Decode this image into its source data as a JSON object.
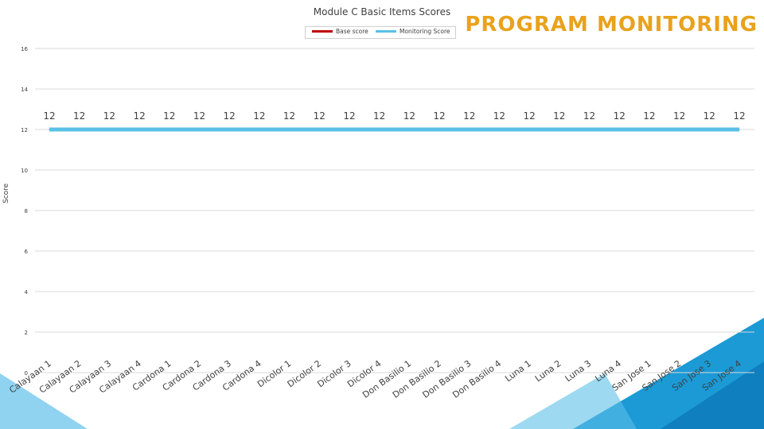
{
  "slide": {
    "title": "PROGRAM MONITORING",
    "title_color": "#e8a21c",
    "accent_colors": [
      "#2fa8de",
      "#0f7fbf",
      "#1b9ad6"
    ]
  },
  "legend": [
    {
      "name": "Base score",
      "color": "#c00000"
    },
    {
      "name": "Monitoring Score",
      "color": "#5bc0e6"
    }
  ],
  "chart_data": {
    "type": "line",
    "title": "Module C Basic Items Scores",
    "xlabel": "",
    "ylabel": "Score",
    "ylim": [
      0,
      16
    ],
    "yticks": [
      0,
      2,
      4,
      6,
      8,
      10,
      12,
      14,
      16
    ],
    "grid": true,
    "legend_position": "top",
    "categories": [
      "Calayaan 1",
      "Calayaan 2",
      "Calayaan 3",
      "Calayaan 4",
      "Cardona 1",
      "Cardona 2",
      "Cardona 3",
      "Cardona 4",
      "Dicolor 1",
      "Dicolor 2",
      "Dicolor 3",
      "Dicolor 4",
      "Don Basilio 1",
      "Don Basilio 2",
      "Don Basilio 3",
      "Don Basilio 4",
      "Luna 1",
      "Luna 2",
      "Luna 3",
      "Luna 4",
      "San Jose 1",
      "San Jose 2",
      "San Jose 3",
      "San Jose 4"
    ],
    "series": [
      {
        "name": "Base score",
        "values": [
          12,
          12,
          12,
          12,
          12,
          12,
          12,
          12,
          12,
          12,
          12,
          12,
          12,
          12,
          12,
          12,
          12,
          12,
          12,
          12,
          12,
          12,
          12,
          12
        ]
      },
      {
        "name": "Monitoring Score",
        "values": [
          12,
          12,
          12,
          12,
          12,
          12,
          12,
          12,
          12,
          12,
          12,
          12,
          12,
          12,
          12,
          12,
          12,
          12,
          12,
          12,
          12,
          12,
          12,
          12
        ]
      }
    ],
    "data_labels": [
      12,
      12,
      12,
      12,
      12,
      12,
      12,
      12,
      12,
      12,
      12,
      12,
      12,
      12,
      12,
      12,
      12,
      12,
      12,
      12,
      12,
      12,
      12,
      12
    ]
  }
}
